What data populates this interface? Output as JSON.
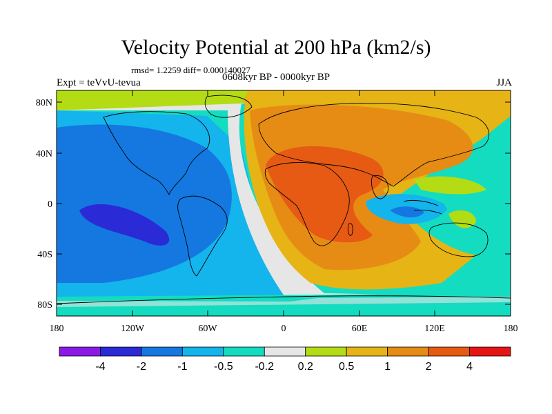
{
  "title": "Velocity Potential at 200 hPa (km2/s)",
  "stats_line": "rmsd= 1.2259 diff= 0.000140027",
  "experiment": "Expt = teVvU-tevua",
  "period": "0608kyr BP - 0000kyr BP",
  "season": "JJA",
  "lat_ticks": [
    "80N",
    "40N",
    "0",
    "40S",
    "80S"
  ],
  "lon_ticks": [
    "180",
    "120W",
    "60W",
    "0",
    "60E",
    "120E",
    "180"
  ],
  "colorbar": {
    "colors": [
      "#8b1ae6",
      "#2a2ad6",
      "#1478e0",
      "#14b4ec",
      "#14dcc0",
      "#e6e6e6",
      "#b4dc14",
      "#e6b414",
      "#e68c14",
      "#e65a14",
      "#e61414"
    ],
    "labels": [
      "-4",
      "-2",
      "-1",
      "-0.5",
      "-0.2",
      "0.2",
      "0.5",
      "1",
      "2",
      "4"
    ]
  }
}
